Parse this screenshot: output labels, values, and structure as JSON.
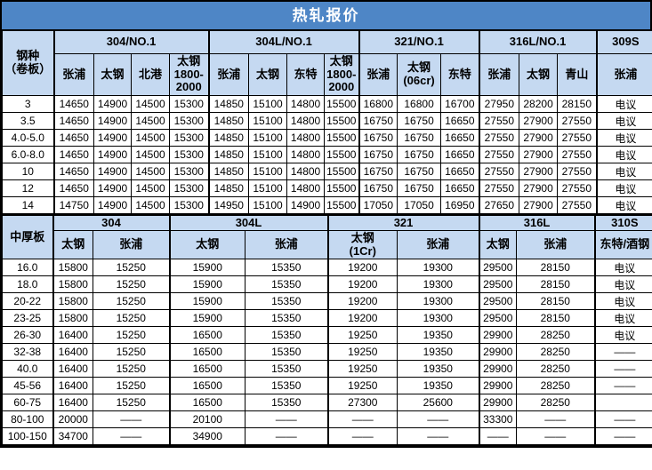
{
  "title": "热轧报价",
  "colors": {
    "title_bg": "#4e86c6",
    "title_text": "#ffffff",
    "header_bg": "#c5d9f1",
    "border": "#000000"
  },
  "negotiable_label": "电议",
  "empty_label": "——",
  "section1": {
    "row_header": "钢种\n（卷板）",
    "groups": [
      {
        "label": "304/NO.1",
        "cols": [
          "张浦",
          "太钢",
          "北港",
          "太钢\n1800-\n2000"
        ]
      },
      {
        "label": "304L/NO.1",
        "cols": [
          "张浦",
          "太钢",
          "东特",
          "太钢\n1800-\n2000"
        ]
      },
      {
        "label": "321/NO.1",
        "cols": [
          "张浦",
          "太钢\n(06cr)",
          "东特"
        ]
      },
      {
        "label": "316L/NO.1",
        "cols": [
          "张浦",
          "太钢",
          "青山"
        ]
      },
      {
        "label": "309S",
        "cols": [
          "张浦"
        ]
      }
    ],
    "rows": [
      {
        "label": "3",
        "values": [
          "14650",
          "14900",
          "14500",
          "15300",
          "14850",
          "15100",
          "14800",
          "15500",
          "16800",
          "16800",
          "16700",
          "27950",
          "28200",
          "28150",
          "电议"
        ]
      },
      {
        "label": "3.5",
        "values": [
          "14650",
          "14900",
          "14500",
          "15300",
          "14850",
          "15100",
          "14800",
          "15500",
          "16750",
          "16750",
          "16650",
          "27550",
          "27900",
          "27550",
          "电议"
        ]
      },
      {
        "label": "4.0-5.0",
        "values": [
          "14650",
          "14900",
          "14500",
          "15300",
          "14850",
          "15100",
          "14800",
          "15500",
          "16750",
          "16750",
          "16650",
          "27550",
          "27900",
          "27550",
          "电议"
        ]
      },
      {
        "label": "6.0-8.0",
        "values": [
          "14650",
          "14900",
          "14500",
          "15300",
          "14850",
          "15100",
          "14800",
          "15500",
          "16750",
          "16750",
          "16650",
          "27550",
          "27900",
          "27550",
          "电议"
        ]
      },
      {
        "label": "10",
        "values": [
          "14650",
          "14900",
          "14500",
          "15300",
          "14850",
          "15100",
          "14800",
          "15500",
          "16750",
          "16750",
          "16650",
          "27550",
          "27900",
          "27550",
          "电议"
        ]
      },
      {
        "label": "12",
        "values": [
          "14650",
          "14900",
          "14500",
          "15300",
          "14850",
          "15100",
          "14800",
          "15500",
          "16750",
          "16750",
          "16650",
          "27550",
          "27900",
          "27550",
          "电议"
        ]
      },
      {
        "label": "14",
        "values": [
          "14750",
          "14900",
          "14500",
          "15300",
          "14950",
          "15100",
          "14900",
          "15500",
          "17050",
          "17050",
          "16950",
          "27650",
          "27900",
          "27550",
          "电议"
        ]
      }
    ]
  },
  "section2": {
    "row_header": "中厚板",
    "groups": [
      {
        "label": "304",
        "cols": [
          "太钢",
          "张浦"
        ]
      },
      {
        "label": "304L",
        "cols": [
          "太钢",
          "张浦"
        ]
      },
      {
        "label": "321",
        "cols": [
          "太钢\n(1Cr)",
          "张浦"
        ]
      },
      {
        "label": "316L",
        "cols": [
          "太钢",
          "张浦"
        ]
      },
      {
        "label": "310S",
        "cols": [
          "东特/酒钢"
        ]
      }
    ],
    "rows": [
      {
        "label": "16.0",
        "values": [
          "15800",
          "15250",
          "15900",
          "15350",
          "19200",
          "19300",
          "29500",
          "28150",
          "电议"
        ]
      },
      {
        "label": "18.0",
        "values": [
          "15800",
          "15250",
          "15900",
          "15350",
          "19200",
          "19300",
          "29500",
          "28150",
          "电议"
        ]
      },
      {
        "label": "20-22",
        "values": [
          "15800",
          "15250",
          "15900",
          "15350",
          "19200",
          "19300",
          "29500",
          "28150",
          "电议"
        ]
      },
      {
        "label": "23-25",
        "values": [
          "15800",
          "15250",
          "15900",
          "15350",
          "19200",
          "19300",
          "29500",
          "28150",
          "电议"
        ]
      },
      {
        "label": "26-30",
        "values": [
          "16400",
          "15250",
          "16500",
          "15350",
          "19250",
          "19350",
          "29900",
          "28250",
          "电议"
        ]
      },
      {
        "label": "32-38",
        "values": [
          "16400",
          "15250",
          "16500",
          "15350",
          "19250",
          "19350",
          "29900",
          "28250",
          "——"
        ]
      },
      {
        "label": "40.0",
        "values": [
          "16400",
          "15250",
          "16500",
          "15350",
          "19250",
          "19350",
          "29900",
          "28250",
          "——"
        ]
      },
      {
        "label": "45-56",
        "values": [
          "16400",
          "15250",
          "16500",
          "15350",
          "19250",
          "19350",
          "29900",
          "28250",
          "——"
        ]
      },
      {
        "label": "60-75",
        "values": [
          "16400",
          "15250",
          "16500",
          "15350",
          "27300",
          "25600",
          "29900",
          "28250",
          ""
        ]
      },
      {
        "label": "80-100",
        "values": [
          "20000",
          "——",
          "20100",
          "——",
          "——",
          "——",
          "33300",
          "——",
          "——"
        ]
      },
      {
        "label": "100-150",
        "values": [
          "34700",
          "——",
          "34900",
          "——",
          "——",
          "——",
          "——",
          "——",
          "——"
        ]
      }
    ]
  }
}
